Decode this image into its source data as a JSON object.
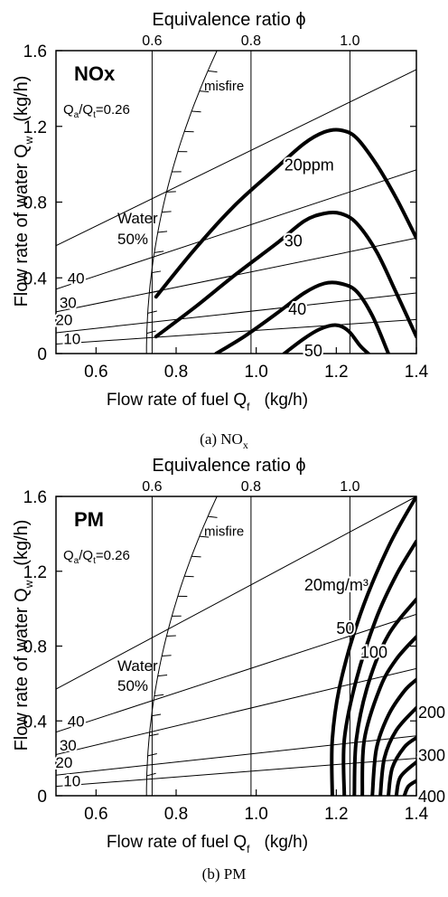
{
  "chart_data": [
    {
      "type": "line",
      "panel_label": "NOx",
      "caption": "(a) NO",
      "caption_sub": "x",
      "ratio_label": {
        "a": "Q",
        "b": "a",
        "c": "/Q",
        "d": "t",
        "e": "=0.26"
      },
      "top_axis_title": "Equivalence ratio ϕ",
      "top_ticks": [
        {
          "x": 0.74,
          "label": "0.6"
        },
        {
          "x": 0.987,
          "label": "0.8"
        },
        {
          "x": 1.234,
          "label": "1.0"
        }
      ],
      "xlabel": "Flow rate of fuel Q",
      "xlabel_sub": "f",
      "xunit": "(kg/h)",
      "ylabel": "Flow rate of water Q",
      "ylabel_sub": "w",
      "yunit": "(kg/h)",
      "xlim": [
        0.5,
        1.4
      ],
      "ylim": [
        0,
        1.6
      ],
      "xticks": [
        "0.6",
        "0.8",
        "1.0",
        "1.2",
        "1.4"
      ],
      "yticks": [
        "0",
        "0.4",
        "0.8",
        "1.2",
        "1.6"
      ],
      "misfire_label": "misfire",
      "water_lines": [
        {
          "label": "Water",
          "label2": "50%",
          "points": [
            [
              0.5,
              0.57
            ],
            [
              1.4,
              1.5
            ]
          ]
        },
        {
          "label": "40",
          "points": [
            [
              0.5,
              0.34
            ],
            [
              1.4,
              0.97
            ]
          ]
        },
        {
          "label": "30",
          "points": [
            [
              0.5,
              0.22
            ],
            [
              1.4,
              0.61
            ]
          ]
        },
        {
          "label": "20",
          "points": [
            [
              0.5,
              0.11
            ],
            [
              1.4,
              0.32
            ]
          ]
        },
        {
          "label": "10",
          "points": [
            [
              0.5,
              0.05
            ],
            [
              1.4,
              0.18
            ]
          ]
        }
      ],
      "series": [
        {
          "name": "20ppm",
          "points": [
            [
              0.75,
              0.3
            ],
            [
              0.85,
              0.56
            ],
            [
              0.95,
              0.79
            ],
            [
              1.05,
              0.98
            ],
            [
              1.12,
              1.11
            ],
            [
              1.17,
              1.17
            ],
            [
              1.21,
              1.18
            ],
            [
              1.25,
              1.14
            ],
            [
              1.3,
              1.0
            ],
            [
              1.35,
              0.82
            ],
            [
              1.4,
              0.61
            ]
          ]
        },
        {
          "name": "30",
          "points": [
            [
              0.75,
              0.09
            ],
            [
              0.85,
              0.25
            ],
            [
              0.95,
              0.42
            ],
            [
              1.05,
              0.58
            ],
            [
              1.12,
              0.7
            ],
            [
              1.17,
              0.74
            ],
            [
              1.21,
              0.74
            ],
            [
              1.25,
              0.69
            ],
            [
              1.3,
              0.54
            ],
            [
              1.35,
              0.32
            ],
            [
              1.4,
              0.09
            ]
          ]
        },
        {
          "name": "40",
          "points": [
            [
              0.9,
              0.0
            ],
            [
              0.97,
              0.09
            ],
            [
              1.05,
              0.21
            ],
            [
              1.12,
              0.32
            ],
            [
              1.17,
              0.37
            ],
            [
              1.21,
              0.37
            ],
            [
              1.25,
              0.33
            ],
            [
              1.29,
              0.2
            ],
            [
              1.33,
              0.0
            ]
          ]
        },
        {
          "name": "50",
          "points": [
            [
              1.07,
              0.0
            ],
            [
              1.12,
              0.08
            ],
            [
              1.16,
              0.13
            ],
            [
              1.2,
              0.15
            ],
            [
              1.23,
              0.12
            ],
            [
              1.26,
              0.04
            ],
            [
              1.28,
              0.0
            ]
          ]
        }
      ]
    },
    {
      "type": "line",
      "panel_label": "PM",
      "caption": "(b) PM",
      "caption_sub": "",
      "ratio_label": {
        "a": "Q",
        "b": "a",
        "c": "/Q",
        "d": "t",
        "e": "=0.26"
      },
      "top_axis_title": "Equivalence ratio ϕ",
      "top_ticks": [
        {
          "x": 0.74,
          "label": "0.6"
        },
        {
          "x": 0.987,
          "label": "0.8"
        },
        {
          "x": 1.234,
          "label": "1.0"
        }
      ],
      "xlabel": "Flow rate of fuel Q",
      "xlabel_sub": "f",
      "xunit": "(kg/h)",
      "ylabel": "Flow rate of water Q",
      "ylabel_sub": "w",
      "yunit": "(kg/h)",
      "xlim": [
        0.5,
        1.4
      ],
      "ylim": [
        0,
        1.6
      ],
      "xticks": [
        "0.6",
        "0.8",
        "1.0",
        "1.2",
        "1.4"
      ],
      "yticks": [
        "0",
        "0.4",
        "0.8",
        "1.2",
        "1.6"
      ],
      "misfire_label": "misfire",
      "water_lines": [
        {
          "label": "Water",
          "label2": "50%",
          "points": [
            [
              0.5,
              0.57
            ],
            [
              1.4,
              1.6
            ]
          ]
        },
        {
          "label": "40",
          "points": [
            [
              0.5,
              0.34
            ],
            [
              1.4,
              0.97
            ]
          ]
        },
        {
          "label": "30",
          "points": [
            [
              0.5,
              0.22
            ],
            [
              1.4,
              0.68
            ]
          ]
        },
        {
          "label": "20",
          "points": [
            [
              0.5,
              0.11
            ],
            [
              1.4,
              0.32
            ]
          ]
        },
        {
          "label": "10",
          "points": [
            [
              0.5,
              0.05
            ],
            [
              1.4,
              0.2
            ]
          ]
        }
      ],
      "series": [
        {
          "name": "20mg/m³",
          "points": [
            [
              1.19,
              0.0
            ],
            [
              1.19,
              0.3
            ],
            [
              1.21,
              0.6
            ],
            [
              1.26,
              0.97
            ],
            [
              1.33,
              1.33
            ],
            [
              1.4,
              1.6
            ]
          ]
        },
        {
          "name": "50",
          "points": [
            [
              1.22,
              0.0
            ],
            [
              1.22,
              0.3
            ],
            [
              1.25,
              0.62
            ],
            [
              1.3,
              0.95
            ],
            [
              1.35,
              1.18
            ],
            [
              1.4,
              1.36
            ]
          ]
        },
        {
          "name": "100",
          "points": [
            [
              1.245,
              0.0
            ],
            [
              1.25,
              0.3
            ],
            [
              1.28,
              0.6
            ],
            [
              1.33,
              0.86
            ],
            [
              1.4,
              1.05
            ]
          ]
        },
        {
          "name": "",
          "points": [
            [
              1.265,
              0.0
            ],
            [
              1.27,
              0.3
            ],
            [
              1.31,
              0.58
            ],
            [
              1.35,
              0.73
            ],
            [
              1.4,
              0.85
            ]
          ]
        },
        {
          "name": "200",
          "points": [
            [
              1.29,
              0.0
            ],
            [
              1.3,
              0.25
            ],
            [
              1.33,
              0.43
            ],
            [
              1.37,
              0.56
            ],
            [
              1.4,
              0.62
            ]
          ]
        },
        {
          "name": "",
          "points": [
            [
              1.31,
              0.0
            ],
            [
              1.32,
              0.2
            ],
            [
              1.35,
              0.35
            ],
            [
              1.4,
              0.47
            ]
          ]
        },
        {
          "name": "300",
          "points": [
            [
              1.33,
              0.0
            ],
            [
              1.34,
              0.15
            ],
            [
              1.37,
              0.26
            ],
            [
              1.4,
              0.31
            ]
          ]
        },
        {
          "name": "",
          "points": [
            [
              1.35,
              0.0
            ],
            [
              1.36,
              0.1
            ],
            [
              1.4,
              0.18
            ]
          ]
        },
        {
          "name": "400",
          "points": [
            [
              1.37,
              0.0
            ],
            [
              1.38,
              0.05
            ],
            [
              1.4,
              0.08
            ]
          ]
        }
      ]
    }
  ]
}
